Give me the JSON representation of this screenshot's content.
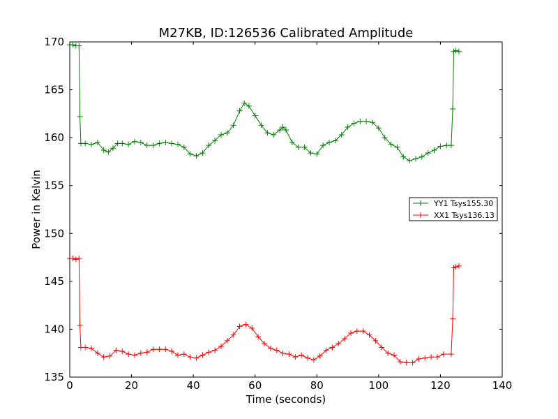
{
  "chart_data": {
    "type": "line",
    "title": "M27KB, ID:126536 Calibrated Amplitude",
    "xlabel": "Time (seconds)",
    "ylabel": "Power in Kelvin",
    "xlim": [
      0,
      140
    ],
    "ylim": [
      135,
      170
    ],
    "xticks": [
      0,
      20,
      40,
      60,
      80,
      100,
      120,
      140
    ],
    "yticks": [
      135,
      140,
      145,
      150,
      155,
      160,
      165,
      170
    ],
    "grid": false,
    "legend": "center-right",
    "marker": "+",
    "series": [
      {
        "name": "YY1 Tsys155.30",
        "color": "#008000",
        "points": [
          [
            0,
            169.7
          ],
          [
            1,
            169.7
          ],
          [
            2,
            169.6
          ],
          [
            3,
            169.6
          ],
          [
            3.3,
            162.2
          ],
          [
            3.6,
            159.4
          ],
          [
            5,
            159.4
          ],
          [
            7,
            159.3
          ],
          [
            9,
            159.5
          ],
          [
            11,
            158.7
          ],
          [
            12.5,
            158.5
          ],
          [
            14,
            158.9
          ],
          [
            15.5,
            159.4
          ],
          [
            17,
            159.4
          ],
          [
            19,
            159.3
          ],
          [
            21,
            159.6
          ],
          [
            23,
            159.5
          ],
          [
            25,
            159.2
          ],
          [
            27,
            159.2
          ],
          [
            29,
            159.4
          ],
          [
            31,
            159.5
          ],
          [
            33,
            159.4
          ],
          [
            35,
            159.3
          ],
          [
            37,
            159.0
          ],
          [
            39,
            158.3
          ],
          [
            41,
            158.1
          ],
          [
            43,
            158.4
          ],
          [
            45,
            159.2
          ],
          [
            47,
            159.7
          ],
          [
            49,
            160.3
          ],
          [
            51,
            160.5
          ],
          [
            53,
            161.3
          ],
          [
            55,
            162.8
          ],
          [
            56.5,
            163.6
          ],
          [
            58,
            163.3
          ],
          [
            60,
            162.3
          ],
          [
            62,
            161.3
          ],
          [
            64,
            160.5
          ],
          [
            66,
            160.3
          ],
          [
            68,
            160.8
          ],
          [
            69,
            161.1
          ],
          [
            70,
            160.8
          ],
          [
            72,
            159.5
          ],
          [
            74,
            159.0
          ],
          [
            76,
            159.0
          ],
          [
            78,
            158.4
          ],
          [
            80,
            158.3
          ],
          [
            82,
            159.2
          ],
          [
            84,
            159.5
          ],
          [
            86,
            159.7
          ],
          [
            88,
            160.3
          ],
          [
            90,
            161.1
          ],
          [
            92,
            161.5
          ],
          [
            94,
            161.7
          ],
          [
            96,
            161.7
          ],
          [
            98,
            161.6
          ],
          [
            100,
            161.0
          ],
          [
            102,
            160.0
          ],
          [
            104,
            159.3
          ],
          [
            106,
            159.0
          ],
          [
            108,
            158.0
          ],
          [
            110,
            157.6
          ],
          [
            112,
            157.8
          ],
          [
            114,
            158.0
          ],
          [
            116,
            158.4
          ],
          [
            118,
            158.7
          ],
          [
            120,
            159.1
          ],
          [
            122,
            159.2
          ],
          [
            123.5,
            159.2
          ],
          [
            124,
            163.0
          ],
          [
            124.3,
            169.0
          ],
          [
            125,
            169.1
          ],
          [
            126,
            169.0
          ]
        ]
      },
      {
        "name": "XX1 Tsys136.13",
        "color": "#ff0000",
        "points": [
          [
            0,
            147.4
          ],
          [
            1,
            147.4
          ],
          [
            2,
            147.3
          ],
          [
            3,
            147.4
          ],
          [
            3.3,
            140.4
          ],
          [
            3.6,
            138.1
          ],
          [
            5,
            138.1
          ],
          [
            7,
            138.0
          ],
          [
            9,
            137.5
          ],
          [
            11,
            137.1
          ],
          [
            13,
            137.2
          ],
          [
            15,
            137.8
          ],
          [
            17,
            137.7
          ],
          [
            19,
            137.4
          ],
          [
            21,
            137.3
          ],
          [
            23,
            137.5
          ],
          [
            25,
            137.6
          ],
          [
            27,
            137.9
          ],
          [
            29,
            137.9
          ],
          [
            31,
            137.9
          ],
          [
            33,
            137.7
          ],
          [
            35,
            137.3
          ],
          [
            37,
            137.4
          ],
          [
            39,
            137.1
          ],
          [
            41,
            137.0
          ],
          [
            43,
            137.3
          ],
          [
            45,
            137.6
          ],
          [
            47,
            137.8
          ],
          [
            49,
            138.2
          ],
          [
            51,
            138.8
          ],
          [
            53,
            139.4
          ],
          [
            55,
            140.3
          ],
          [
            57,
            140.5
          ],
          [
            59,
            140.1
          ],
          [
            61,
            139.2
          ],
          [
            63,
            138.5
          ],
          [
            65,
            138.0
          ],
          [
            67,
            137.8
          ],
          [
            69,
            137.5
          ],
          [
            71,
            137.4
          ],
          [
            73,
            137.1
          ],
          [
            75,
            137.3
          ],
          [
            77,
            137.0
          ],
          [
            79,
            136.8
          ],
          [
            81,
            137.2
          ],
          [
            83,
            137.8
          ],
          [
            85,
            138.1
          ],
          [
            87,
            138.5
          ],
          [
            89,
            139.0
          ],
          [
            91,
            139.6
          ],
          [
            93,
            139.8
          ],
          [
            95,
            139.8
          ],
          [
            97,
            139.4
          ],
          [
            99,
            138.8
          ],
          [
            101,
            138.1
          ],
          [
            103,
            137.5
          ],
          [
            105,
            137.3
          ],
          [
            107,
            136.6
          ],
          [
            109,
            136.5
          ],
          [
            111,
            136.5
          ],
          [
            113,
            136.9
          ],
          [
            115,
            137.0
          ],
          [
            117,
            137.1
          ],
          [
            119,
            137.1
          ],
          [
            121,
            137.4
          ],
          [
            123.5,
            137.4
          ],
          [
            124,
            141.1
          ],
          [
            124.3,
            146.4
          ],
          [
            125,
            146.5
          ],
          [
            126,
            146.6
          ]
        ]
      }
    ]
  }
}
